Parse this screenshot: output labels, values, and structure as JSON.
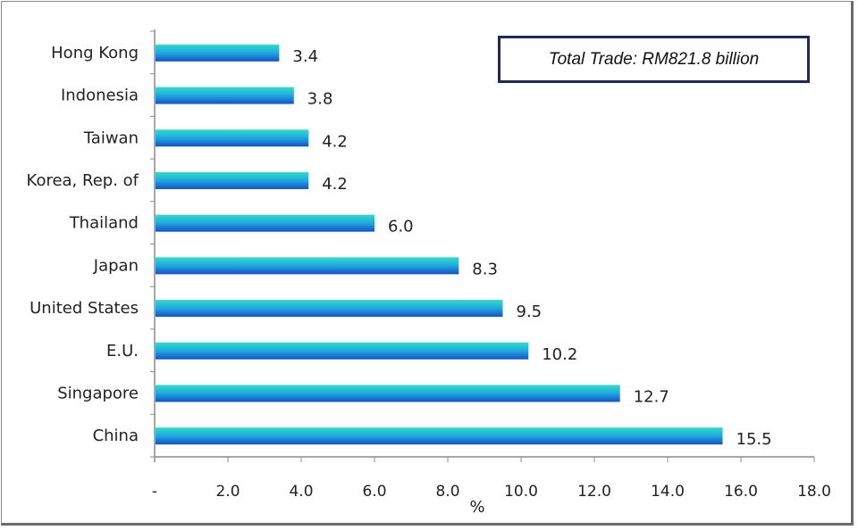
{
  "chart_data": {
    "type": "bar",
    "orientation": "horizontal",
    "categories": [
      "Hong Kong",
      "Indonesia",
      "Taiwan",
      "Korea, Rep. of",
      "Thailand",
      "Japan",
      "United States",
      "E.U.",
      "Singapore",
      "China"
    ],
    "values": [
      3.4,
      3.8,
      4.2,
      4.2,
      6.0,
      8.3,
      9.5,
      10.2,
      12.7,
      15.5
    ],
    "data_labels": [
      "3.4",
      "3.8",
      "4.2",
      "4.2",
      "6.0",
      "8.3",
      "9.5",
      "10.2",
      "12.7",
      "15.5"
    ],
    "xlabel": "%",
    "ylabel": "",
    "xlim": [
      0,
      18
    ],
    "x_ticks": [
      "-",
      "2.0",
      "4.0",
      "6.0",
      "8.0",
      "10.0",
      "12.0",
      "14.0",
      "16.0",
      "18.0"
    ],
    "grid": false,
    "annotation": "Total Trade: RM821.8 billion",
    "colors": {
      "bar_top": "#33dcc8",
      "bar_bottom": "#1650c8",
      "axis": "#8c8c8c",
      "box_border": "#1f2a5c"
    }
  }
}
